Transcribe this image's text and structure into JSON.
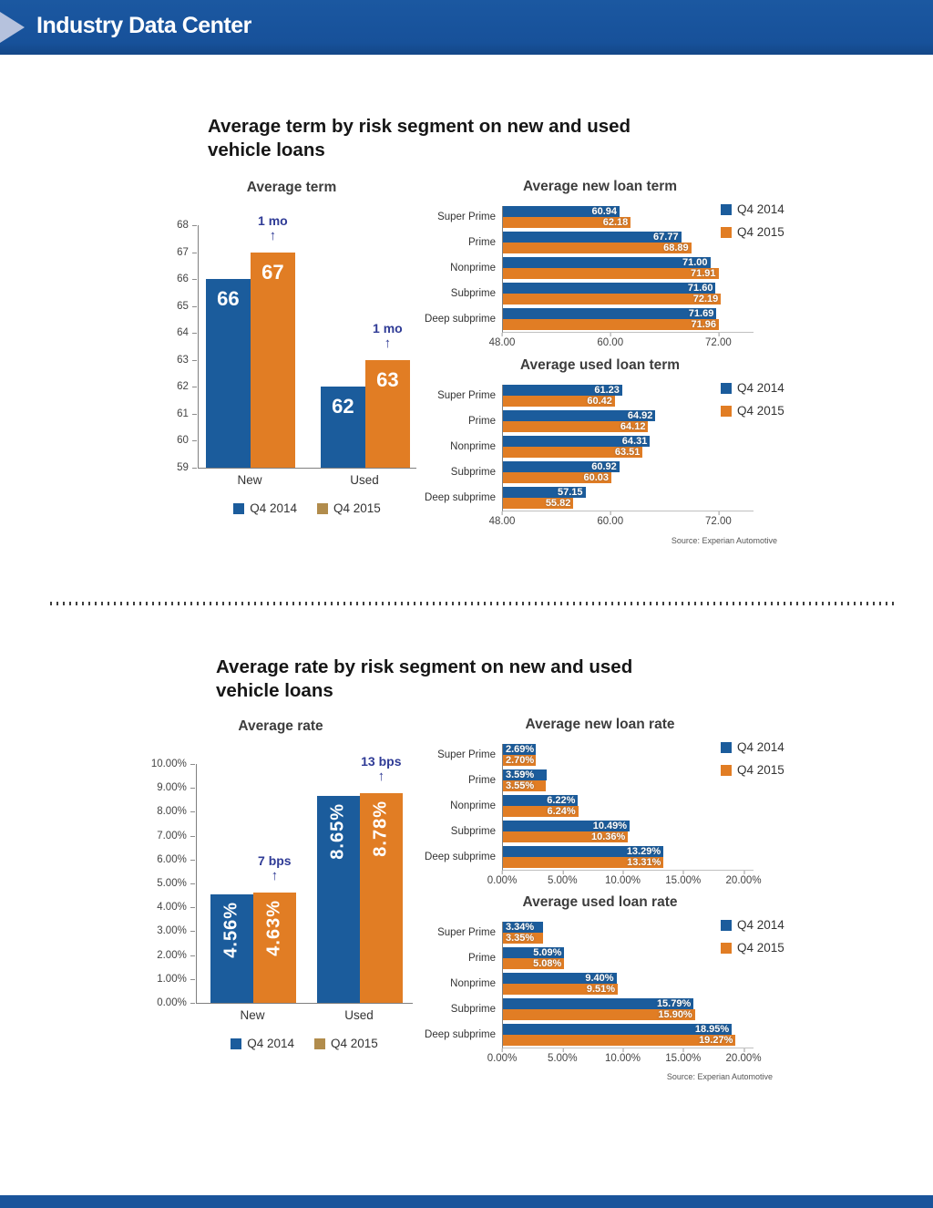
{
  "header": {
    "title": "Industry Data Center"
  },
  "sections": [
    {
      "heading_line1": "Average term by risk segment on new and used",
      "heading_line2": "vehicle loans",
      "source": "Source: Experian Automotive"
    },
    {
      "heading_line1": "Average rate by risk segment on new and used",
      "heading_line2": "vehicle loans",
      "source": "Source: Experian Automotive"
    }
  ],
  "colors": {
    "header_bg": "#1a549b",
    "header_arrow": "#b6c2dd",
    "q4_2014": "#1b5c9c",
    "q4_2015": "#e17d24",
    "q4_2015_legend_tan": "#b18c4c",
    "annotation": "#2f3b96",
    "title_text": "#3d3d3d",
    "source_text": "#555555"
  },
  "chart_data": [
    {
      "id": "avg_term",
      "type": "bar",
      "title": "Average term",
      "categories": [
        "New",
        "Used"
      ],
      "series": [
        {
          "name": "Q4 2014",
          "values": [
            66,
            62
          ],
          "labels": [
            "66",
            "62"
          ]
        },
        {
          "name": "Q4 2015",
          "values": [
            67,
            63
          ],
          "labels": [
            "67",
            "63"
          ]
        }
      ],
      "annotations": [
        "1 mo",
        "1 mo"
      ],
      "ylim": [
        59,
        68
      ],
      "yticks": [
        {
          "v": 68,
          "label": "68"
        },
        {
          "v": 67,
          "label": "67"
        },
        {
          "v": 66,
          "label": "66"
        },
        {
          "v": 65,
          "label": "65"
        },
        {
          "v": 64,
          "label": "64"
        },
        {
          "v": 63,
          "label": "63"
        },
        {
          "v": 62,
          "label": "62"
        },
        {
          "v": 61,
          "label": "61"
        },
        {
          "v": 60,
          "label": "60"
        },
        {
          "v": 59,
          "label": "59"
        }
      ],
      "legend": [
        "Q4 2014",
        "Q4 2015"
      ],
      "legend_position": "bottom",
      "grid": false
    },
    {
      "id": "new_term",
      "type": "bar-horizontal",
      "title": "Average new loan term",
      "categories": [
        "Super Prime",
        "Prime",
        "Nonprime",
        "Subprime",
        "Deep subprime"
      ],
      "series": [
        {
          "name": "Q4 2014",
          "values": [
            60.94,
            67.77,
            71.0,
            71.6,
            71.69
          ],
          "labels": [
            "60.94",
            "67.77",
            "71.00",
            "71.60",
            "71.69"
          ]
        },
        {
          "name": "Q4 2015",
          "values": [
            62.18,
            68.89,
            71.91,
            72.19,
            71.96
          ],
          "labels": [
            "62.18",
            "68.89",
            "71.91",
            "72.19",
            "71.96"
          ]
        }
      ],
      "xlim": [
        48,
        75.8
      ],
      "xticks": [
        {
          "v": 48,
          "label": "48.00"
        },
        {
          "v": 60,
          "label": "60.00"
        },
        {
          "v": 72,
          "label": "72.00"
        }
      ],
      "legend": [
        "Q4 2014",
        "Q4 2015"
      ],
      "legend_position": "right",
      "grid": false
    },
    {
      "id": "used_term",
      "type": "bar-horizontal",
      "title": "Average used loan term",
      "categories": [
        "Super Prime",
        "Prime",
        "Nonprime",
        "Subprime",
        "Deep subprime"
      ],
      "series": [
        {
          "name": "Q4 2014",
          "values": [
            61.23,
            64.92,
            64.31,
            60.92,
            57.15
          ],
          "labels": [
            "61.23",
            "64.92",
            "64.31",
            "60.92",
            "57.15"
          ]
        },
        {
          "name": "Q4 2015",
          "values": [
            60.42,
            64.12,
            63.51,
            60.03,
            55.82
          ],
          "labels": [
            "60.42",
            "64.12",
            "63.51",
            "60.03",
            "55.82"
          ]
        }
      ],
      "xlim": [
        48,
        75.8
      ],
      "xticks": [
        {
          "v": 48,
          "label": "48.00"
        },
        {
          "v": 60,
          "label": "60.00"
        },
        {
          "v": 72,
          "label": "72.00"
        }
      ],
      "legend": [
        "Q4 2014",
        "Q4 2015"
      ],
      "legend_position": "right",
      "grid": false
    },
    {
      "id": "avg_rate",
      "type": "bar",
      "title": "Average rate",
      "categories": [
        "New",
        "Used"
      ],
      "series": [
        {
          "name": "Q4 2014",
          "values": [
            4.56,
            8.65
          ],
          "labels": [
            "4.56%",
            "8.65%"
          ]
        },
        {
          "name": "Q4 2015",
          "values": [
            4.63,
            8.78
          ],
          "labels": [
            "4.63%",
            "8.78%"
          ]
        }
      ],
      "annotations": [
        "7 bps",
        "13 bps"
      ],
      "ylim": [
        0,
        10
      ],
      "yticks": [
        {
          "v": 10,
          "label": "10.00%"
        },
        {
          "v": 9,
          "label": "9.00%"
        },
        {
          "v": 8,
          "label": "8.00%"
        },
        {
          "v": 7,
          "label": "7.00%"
        },
        {
          "v": 6,
          "label": "6.00%"
        },
        {
          "v": 5,
          "label": "5.00%"
        },
        {
          "v": 4,
          "label": "4.00%"
        },
        {
          "v": 3,
          "label": "3.00%"
        },
        {
          "v": 2,
          "label": "2.00%"
        },
        {
          "v": 1,
          "label": "1.00%"
        },
        {
          "v": 0,
          "label": "0.00%"
        }
      ],
      "legend": [
        "Q4 2014",
        "Q4 2015"
      ],
      "legend_position": "bottom",
      "grid": false
    },
    {
      "id": "new_rate",
      "type": "bar-horizontal",
      "title": "Average new loan rate",
      "categories": [
        "Super Prime",
        "Prime",
        "Nonprime",
        "Subprime",
        "Deep subprime"
      ],
      "series": [
        {
          "name": "Q4 2014",
          "values": [
            2.69,
            3.59,
            6.22,
            10.49,
            13.29
          ],
          "labels": [
            "2.69%",
            "3.59%",
            "6.22%",
            "10.49%",
            "13.29%"
          ]
        },
        {
          "name": "Q4 2015",
          "values": [
            2.7,
            3.55,
            6.24,
            10.36,
            13.31
          ],
          "labels": [
            "2.70%",
            "3.55%",
            "6.24%",
            "10.36%",
            "13.31%"
          ]
        }
      ],
      "xlim": [
        0,
        20.75
      ],
      "xticks": [
        {
          "v": 0,
          "label": "0.00%"
        },
        {
          "v": 5,
          "label": "5.00%"
        },
        {
          "v": 10,
          "label": "10.00%"
        },
        {
          "v": 15,
          "label": "15.00%"
        },
        {
          "v": 20,
          "label": "20.00%"
        }
      ],
      "legend": [
        "Q4 2014",
        "Q4 2015"
      ],
      "legend_position": "right",
      "grid": false
    },
    {
      "id": "used_rate",
      "type": "bar-horizontal",
      "title": "Average used loan rate",
      "categories": [
        "Super Prime",
        "Prime",
        "Nonprime",
        "Subprime",
        "Deep subprime"
      ],
      "series": [
        {
          "name": "Q4 2014",
          "values": [
            3.34,
            5.09,
            9.4,
            15.79,
            18.95
          ],
          "labels": [
            "3.34%",
            "5.09%",
            "9.40%",
            "15.79%",
            "18.95%"
          ]
        },
        {
          "name": "Q4 2015",
          "values": [
            3.35,
            5.08,
            9.51,
            15.9,
            19.27
          ],
          "labels": [
            "3.35%",
            "5.08%",
            "9.51%",
            "15.90%",
            "19.27%"
          ]
        }
      ],
      "xlim": [
        0,
        20.75
      ],
      "xticks": [
        {
          "v": 0,
          "label": "0.00%"
        },
        {
          "v": 5,
          "label": "5.00%"
        },
        {
          "v": 10,
          "label": "10.00%"
        },
        {
          "v": 15,
          "label": "15.00%"
        },
        {
          "v": 20,
          "label": "20.00%"
        }
      ],
      "legend": [
        "Q4 2014",
        "Q4 2015"
      ],
      "legend_position": "right",
      "grid": false
    }
  ]
}
